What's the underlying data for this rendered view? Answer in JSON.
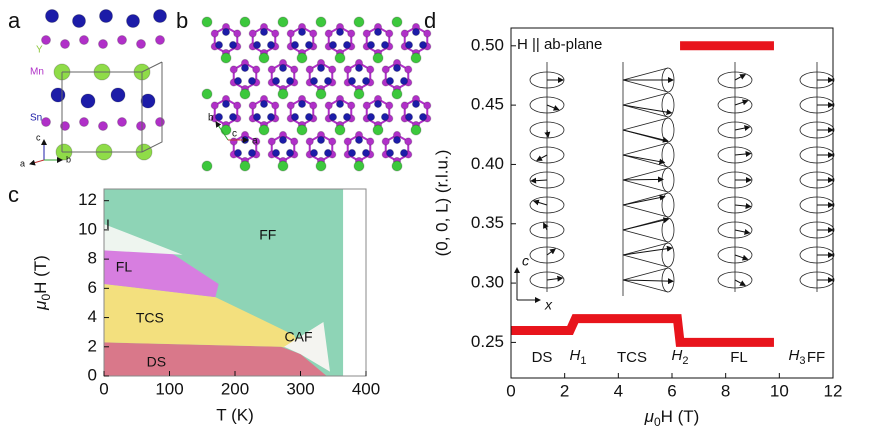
{
  "panel_labels": [
    "a",
    "b",
    "c",
    "d"
  ],
  "structure_a": {
    "atoms": [
      "Y",
      "Mn",
      "Sn"
    ],
    "axes": [
      "c",
      "a",
      "b"
    ]
  },
  "structure_b": {
    "axes": [
      "b",
      "c",
      "a"
    ]
  },
  "chart_data": [
    {
      "type": "area",
      "xlabel": "T (K)",
      "ylabel": [
        "μ",
        "0",
        "H (T)"
      ],
      "xlim": [
        0,
        400
      ],
      "xticks": [
        0,
        100,
        200,
        300,
        400
      ],
      "ylim": [
        0,
        12.8
      ],
      "yticks": [
        0,
        2,
        4,
        6,
        8,
        10,
        12
      ],
      "series": [
        {
          "name": "FF",
          "color": "#8ed4b6",
          "x": [
            0,
            365,
            365,
            0
          ],
          "y": [
            0,
            0,
            12.8,
            12.8
          ]
        },
        {
          "name": "DS",
          "color": "#d9788a",
          "x": [
            0,
            0,
            270,
            300,
            340
          ],
          "y": [
            0,
            2.3,
            2.0,
            1.5,
            0
          ]
        },
        {
          "name": "TCS",
          "color": "#f3e07e",
          "x": [
            0,
            0,
            170,
            290,
            300,
            270,
            0
          ],
          "y": [
            2.3,
            6.3,
            5.4,
            2.8,
            1.8,
            2.0,
            2.3
          ]
        },
        {
          "name": "FL",
          "color": "#d77ee0",
          "x": [
            0,
            0,
            100,
            175,
            170,
            0
          ],
          "y": [
            6.3,
            8.6,
            8.5,
            6.3,
            5.4,
            6.3
          ]
        },
        {
          "name": "I",
          "color": "#eef5ef",
          "x": [
            0,
            0,
            120,
            0
          ],
          "y": [
            8.6,
            10.4,
            8.3,
            8.6
          ]
        },
        {
          "name": "CAF",
          "color": "#f4f4f0",
          "x": [
            275,
            335,
            345,
            300
          ],
          "y": [
            2.0,
            3.7,
            0.3,
            1.5
          ]
        }
      ]
    },
    {
      "type": "line",
      "xlabel": [
        "μ",
        "0",
        "H (T)"
      ],
      "ylabel": "(0, 0, L) (r.l.u.)",
      "xlim": [
        0,
        12
      ],
      "xticks": [
        0,
        2,
        4,
        6,
        8,
        10,
        12
      ],
      "ylim": [
        0.22,
        0.515
      ],
      "yticks": [
        0.25,
        {
          "value": 0.3,
          "label": "0.30"
        },
        0.35,
        {
          "value": 0.4,
          "label": "0.40"
        },
        0.45,
        {
          "value": 0.5,
          "label": "0.50"
        }
      ],
      "series": [
        {
          "color": "#e8141c",
          "x": [
            0,
            2.2,
            2.4,
            6.2,
            6.3,
            9.8
          ],
          "y": [
            0.26,
            0.26,
            0.27,
            0.27,
            0.25,
            0.25
          ]
        },
        {
          "color": "#e8141c",
          "x": [
            6.3,
            9.8
          ],
          "y": [
            0.5,
            0.5
          ]
        }
      ],
      "annotation": "H || ab-plane",
      "phase_labels": [
        "DS",
        "TCS",
        "FL",
        "FF"
      ],
      "field_labels": [
        {
          "symbol": "H",
          "sub": "1"
        },
        {
          "symbol": "H",
          "sub": "2"
        },
        {
          "symbol": "H",
          "sub": "3"
        }
      ],
      "frame_axes": [
        "c",
        "x"
      ]
    }
  ]
}
